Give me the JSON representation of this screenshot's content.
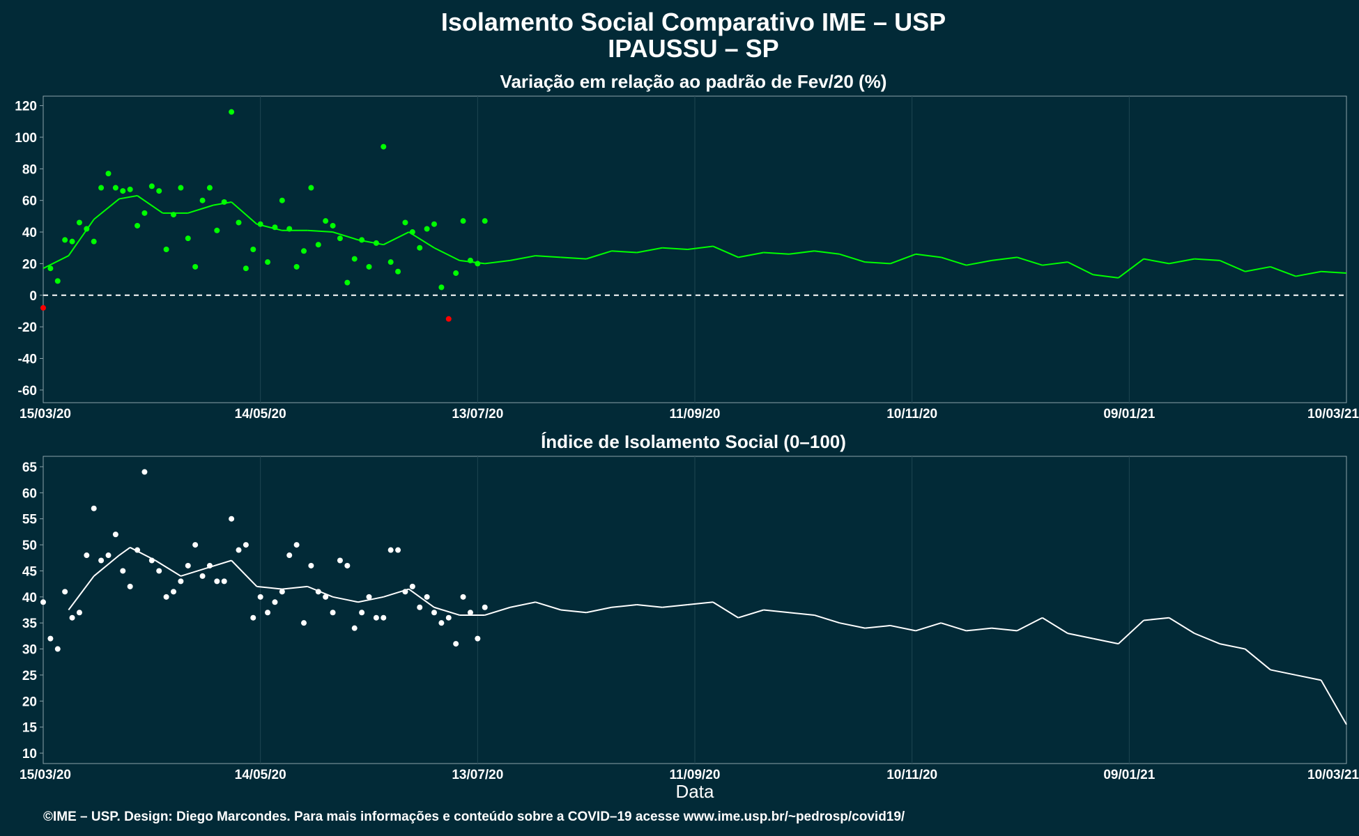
{
  "header": {
    "title_line1": "Isolamento Social Comparativo IME – USP",
    "title_line2": "IPAUSSU – SP"
  },
  "footer": {
    "xlabel": "Data",
    "caption": "©IME – USP. Design: Diego Marcondes. Para mais informações e conteúdo sobre a COVID–19 acesse www.ime.usp.br/~pedrosp/covid19/"
  },
  "colors": {
    "background": "#022a37",
    "positive": "#00ff00",
    "negative": "#ff0000",
    "index": "#ffffff",
    "grid": "#1f4652"
  },
  "chart_data": [
    {
      "type": "scatter",
      "title": "Variação em relação ao padrão de Fev/20 (%)",
      "xlabel": "",
      "ylabel": "",
      "xlim": [
        "2020-03-15",
        "2021-03-10"
      ],
      "ylim": [
        -68,
        126
      ],
      "x_ticks": [
        "15/03/20",
        "14/05/20",
        "13/07/20",
        "11/09/20",
        "10/11/20",
        "09/01/21",
        "10/03/21"
      ],
      "y_ticks": [
        -60,
        -40,
        -20,
        0,
        20,
        40,
        60,
        80,
        100,
        120
      ],
      "reference_line": 0,
      "grid": true,
      "color_rule": "green when >= 0, red when < 0",
      "points": [
        [
          "2020-03-15",
          -8
        ],
        [
          "2020-03-17",
          17
        ],
        [
          "2020-03-19",
          9
        ],
        [
          "2020-03-21",
          35
        ],
        [
          "2020-03-23",
          34
        ],
        [
          "2020-03-25",
          46
        ],
        [
          "2020-03-27",
          42
        ],
        [
          "2020-03-29",
          34
        ],
        [
          "2020-03-31",
          68
        ],
        [
          "2020-04-02",
          77
        ],
        [
          "2020-04-04",
          68
        ],
        [
          "2020-04-06",
          66
        ],
        [
          "2020-04-08",
          67
        ],
        [
          "2020-04-10",
          44
        ],
        [
          "2020-04-12",
          52
        ],
        [
          "2020-04-14",
          69
        ],
        [
          "2020-04-16",
          66
        ],
        [
          "2020-04-18",
          29
        ],
        [
          "2020-04-20",
          51
        ],
        [
          "2020-04-22",
          68
        ],
        [
          "2020-04-24",
          36
        ],
        [
          "2020-04-26",
          18
        ],
        [
          "2020-04-28",
          60
        ],
        [
          "2020-04-30",
          68
        ],
        [
          "2020-05-02",
          41
        ],
        [
          "2020-05-04",
          59
        ],
        [
          "2020-05-06",
          116
        ],
        [
          "2020-05-08",
          46
        ],
        [
          "2020-05-10",
          17
        ],
        [
          "2020-05-12",
          29
        ],
        [
          "2020-05-14",
          45
        ],
        [
          "2020-05-16",
          21
        ],
        [
          "2020-05-18",
          43
        ],
        [
          "2020-05-20",
          60
        ],
        [
          "2020-05-22",
          42
        ],
        [
          "2020-05-24",
          18
        ],
        [
          "2020-05-26",
          28
        ],
        [
          "2020-05-28",
          68
        ],
        [
          "2020-05-30",
          32
        ],
        [
          "2020-06-01",
          47
        ],
        [
          "2020-06-03",
          44
        ],
        [
          "2020-06-05",
          36
        ],
        [
          "2020-06-07",
          8
        ],
        [
          "2020-06-09",
          23
        ],
        [
          "2020-06-11",
          35
        ],
        [
          "2020-06-13",
          18
        ],
        [
          "2020-06-15",
          33
        ],
        [
          "2020-06-17",
          94
        ],
        [
          "2020-06-19",
          21
        ],
        [
          "2020-06-21",
          15
        ],
        [
          "2020-06-23",
          46
        ],
        [
          "2020-06-25",
          40
        ],
        [
          "2020-06-27",
          30
        ],
        [
          "2020-06-29",
          42
        ],
        [
          "2020-07-01",
          45
        ],
        [
          "2020-07-03",
          5
        ],
        [
          "2020-07-05",
          -15
        ],
        [
          "2020-07-07",
          14
        ],
        [
          "2020-07-09",
          47
        ],
        [
          "2020-07-11",
          22
        ],
        [
          "2020-07-13",
          20
        ],
        [
          "2020-07-15",
          47
        ]
      ],
      "trend": [
        [
          "2020-03-15",
          17
        ],
        [
          "2020-03-22",
          25
        ],
        [
          "2020-03-29",
          48
        ],
        [
          "2020-04-05",
          61
        ],
        [
          "2020-04-10",
          63
        ],
        [
          "2020-04-17",
          52
        ],
        [
          "2020-04-24",
          52
        ],
        [
          "2020-05-01",
          57
        ],
        [
          "2020-05-06",
          59
        ],
        [
          "2020-05-13",
          45
        ],
        [
          "2020-05-20",
          41
        ],
        [
          "2020-05-27",
          41
        ],
        [
          "2020-06-03",
          40
        ],
        [
          "2020-06-10",
          35
        ],
        [
          "2020-06-17",
          32
        ],
        [
          "2020-06-24",
          40
        ],
        [
          "2020-07-01",
          30
        ],
        [
          "2020-07-08",
          22
        ],
        [
          "2020-07-15",
          20
        ],
        [
          "2020-07-22",
          22
        ],
        [
          "2020-07-29",
          25
        ],
        [
          "2020-08-05",
          24
        ],
        [
          "2020-08-12",
          23
        ],
        [
          "2020-08-19",
          28
        ],
        [
          "2020-08-26",
          27
        ],
        [
          "2020-09-02",
          30
        ],
        [
          "2020-09-09",
          29
        ],
        [
          "2020-09-16",
          31
        ],
        [
          "2020-09-23",
          24
        ],
        [
          "2020-09-30",
          27
        ],
        [
          "2020-10-07",
          26
        ],
        [
          "2020-10-14",
          28
        ],
        [
          "2020-10-21",
          26
        ],
        [
          "2020-10-28",
          21
        ],
        [
          "2020-11-04",
          20
        ],
        [
          "2020-11-11",
          26
        ],
        [
          "2020-11-18",
          24
        ],
        [
          "2020-11-25",
          19
        ],
        [
          "2020-12-02",
          22
        ],
        [
          "2020-12-09",
          24
        ],
        [
          "2020-12-16",
          19
        ],
        [
          "2020-12-23",
          21
        ],
        [
          "2020-12-30",
          13
        ],
        [
          "2021-01-06",
          11
        ],
        [
          "2021-01-13",
          23
        ],
        [
          "2021-01-20",
          20
        ],
        [
          "2021-01-27",
          23
        ],
        [
          "2021-02-03",
          22
        ],
        [
          "2021-02-10",
          15
        ],
        [
          "2021-02-17",
          18
        ],
        [
          "2021-02-24",
          12
        ],
        [
          "2021-03-03",
          15
        ],
        [
          "2021-03-10",
          14
        ]
      ]
    },
    {
      "type": "scatter",
      "title": "Índice de Isolamento Social (0–100)",
      "xlabel": "Data",
      "ylabel": "",
      "xlim": [
        "2020-03-15",
        "2021-03-10"
      ],
      "ylim": [
        8,
        67
      ],
      "x_ticks": [
        "15/03/20",
        "14/05/20",
        "13/07/20",
        "11/09/20",
        "10/11/20",
        "09/01/21",
        "10/03/21"
      ],
      "y_ticks": [
        10,
        15,
        20,
        25,
        30,
        35,
        40,
        45,
        50,
        55,
        60,
        65
      ],
      "grid": true,
      "points": [
        [
          "2020-03-15",
          39
        ],
        [
          "2020-03-17",
          32
        ],
        [
          "2020-03-19",
          30
        ],
        [
          "2020-03-21",
          41
        ],
        [
          "2020-03-23",
          36
        ],
        [
          "2020-03-25",
          37
        ],
        [
          "2020-03-27",
          48
        ],
        [
          "2020-03-29",
          57
        ],
        [
          "2020-03-31",
          47
        ],
        [
          "2020-04-02",
          48
        ],
        [
          "2020-04-04",
          52
        ],
        [
          "2020-04-06",
          45
        ],
        [
          "2020-04-08",
          42
        ],
        [
          "2020-04-10",
          49
        ],
        [
          "2020-04-12",
          64
        ],
        [
          "2020-04-14",
          47
        ],
        [
          "2020-04-16",
          45
        ],
        [
          "2020-04-18",
          40
        ],
        [
          "2020-04-20",
          41
        ],
        [
          "2020-04-22",
          43
        ],
        [
          "2020-04-24",
          46
        ],
        [
          "2020-04-26",
          50
        ],
        [
          "2020-04-28",
          44
        ],
        [
          "2020-04-30",
          46
        ],
        [
          "2020-05-02",
          43
        ],
        [
          "2020-05-04",
          43
        ],
        [
          "2020-05-06",
          55
        ],
        [
          "2020-05-08",
          49
        ],
        [
          "2020-05-10",
          50
        ],
        [
          "2020-05-12",
          36
        ],
        [
          "2020-05-14",
          40
        ],
        [
          "2020-05-16",
          37
        ],
        [
          "2020-05-18",
          39
        ],
        [
          "2020-05-20",
          41
        ],
        [
          "2020-05-22",
          48
        ],
        [
          "2020-05-24",
          50
        ],
        [
          "2020-05-26",
          35
        ],
        [
          "2020-05-28",
          46
        ],
        [
          "2020-05-30",
          41
        ],
        [
          "2020-06-01",
          40
        ],
        [
          "2020-06-03",
          37
        ],
        [
          "2020-06-05",
          47
        ],
        [
          "2020-06-07",
          46
        ],
        [
          "2020-06-09",
          34
        ],
        [
          "2020-06-11",
          37
        ],
        [
          "2020-06-13",
          40
        ],
        [
          "2020-06-15",
          36
        ],
        [
          "2020-06-17",
          36
        ],
        [
          "2020-06-19",
          49
        ],
        [
          "2020-06-21",
          49
        ],
        [
          "2020-06-23",
          41
        ],
        [
          "2020-06-25",
          42
        ],
        [
          "2020-06-27",
          38
        ],
        [
          "2020-06-29",
          40
        ],
        [
          "2020-07-01",
          37
        ],
        [
          "2020-07-03",
          35
        ],
        [
          "2020-07-05",
          36
        ],
        [
          "2020-07-07",
          31
        ],
        [
          "2020-07-09",
          40
        ],
        [
          "2020-07-11",
          37
        ],
        [
          "2020-07-13",
          32
        ],
        [
          "2020-07-15",
          38
        ]
      ],
      "trend": [
        [
          "2020-03-22",
          37.5
        ],
        [
          "2020-03-29",
          44
        ],
        [
          "2020-04-05",
          48
        ],
        [
          "2020-04-08",
          49.5
        ],
        [
          "2020-04-15",
          47
        ],
        [
          "2020-04-22",
          44
        ],
        [
          "2020-04-29",
          45.5
        ],
        [
          "2020-05-06",
          47
        ],
        [
          "2020-05-13",
          42
        ],
        [
          "2020-05-20",
          41.5
        ],
        [
          "2020-05-27",
          42
        ],
        [
          "2020-06-03",
          40
        ],
        [
          "2020-06-10",
          39
        ],
        [
          "2020-06-17",
          40
        ],
        [
          "2020-06-24",
          41.5
        ],
        [
          "2020-07-01",
          38
        ],
        [
          "2020-07-08",
          36.5
        ],
        [
          "2020-07-15",
          36.5
        ],
        [
          "2020-07-22",
          38
        ],
        [
          "2020-07-29",
          39
        ],
        [
          "2020-08-05",
          37.5
        ],
        [
          "2020-08-12",
          37
        ],
        [
          "2020-08-19",
          38
        ],
        [
          "2020-08-26",
          38.5
        ],
        [
          "2020-09-02",
          38
        ],
        [
          "2020-09-09",
          38.5
        ],
        [
          "2020-09-16",
          39
        ],
        [
          "2020-09-23",
          36
        ],
        [
          "2020-09-30",
          37.5
        ],
        [
          "2020-10-07",
          37
        ],
        [
          "2020-10-14",
          36.5
        ],
        [
          "2020-10-21",
          35
        ],
        [
          "2020-10-28",
          34
        ],
        [
          "2020-11-04",
          34.5
        ],
        [
          "2020-11-11",
          33.5
        ],
        [
          "2020-11-18",
          35
        ],
        [
          "2020-11-25",
          33.5
        ],
        [
          "2020-12-02",
          34
        ],
        [
          "2020-12-09",
          33.5
        ],
        [
          "2020-12-16",
          36
        ],
        [
          "2020-12-23",
          33
        ],
        [
          "2020-12-30",
          32
        ],
        [
          "2021-01-06",
          31
        ],
        [
          "2021-01-13",
          35.5
        ],
        [
          "2021-01-20",
          36
        ],
        [
          "2021-01-27",
          33
        ],
        [
          "2021-02-03",
          31
        ],
        [
          "2021-02-10",
          30
        ],
        [
          "2021-02-17",
          26
        ],
        [
          "2021-02-24",
          25
        ],
        [
          "2021-03-03",
          24
        ],
        [
          "2021-03-10",
          15.5
        ]
      ]
    }
  ]
}
